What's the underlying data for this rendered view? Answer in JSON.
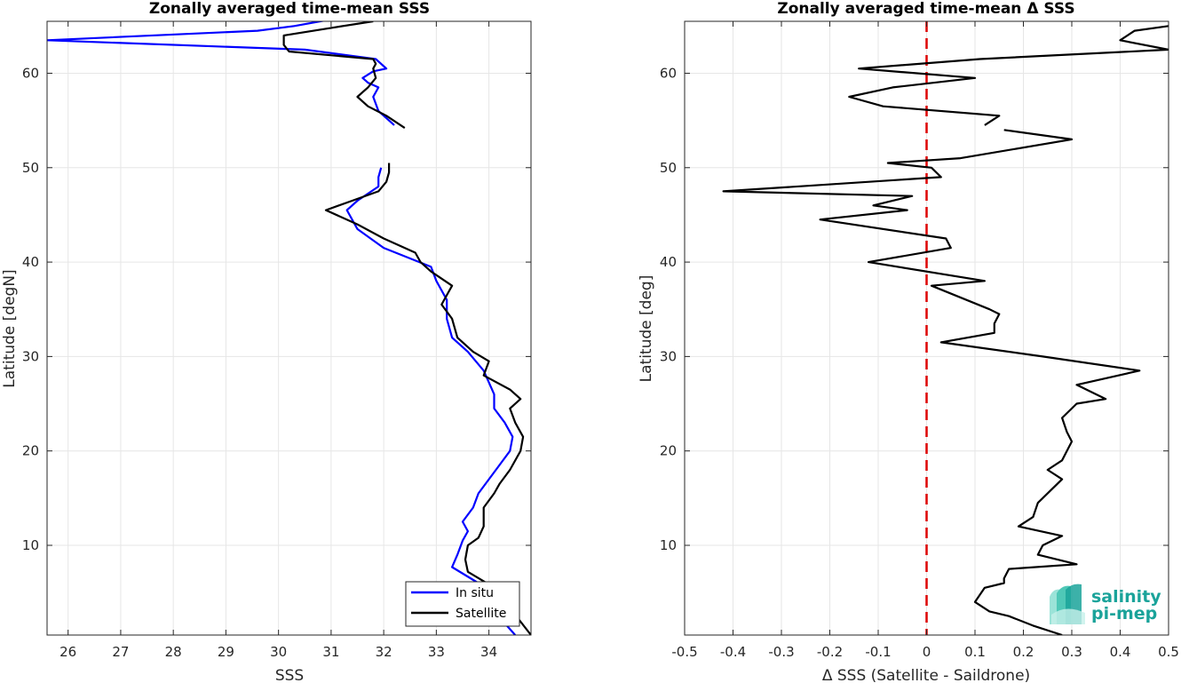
{
  "chart_data": [
    {
      "type": "line",
      "title": "Zonally averaged time-mean SSS",
      "xlabel": "SSS",
      "ylabel": "Latitude [degN]",
      "xlim": [
        25.6,
        34.8
      ],
      "ylim": [
        0.5,
        65.5
      ],
      "xticks": [
        26,
        27,
        28,
        29,
        30,
        31,
        32,
        33,
        34
      ],
      "yticks": [
        10,
        20,
        30,
        40,
        50,
        60
      ],
      "grid": true,
      "legend": "bottom-right",
      "series": [
        {
          "name": "In situ",
          "color": "#0000ff",
          "segments": [
            [
              [
                34.5,
                0.5
              ],
              [
                34.1,
                3.0
              ],
              [
                33.9,
                5.0
              ],
              [
                33.8,
                6.0
              ],
              [
                33.3,
                7.7
              ],
              [
                33.4,
                9.0
              ],
              [
                33.5,
                10.5
              ],
              [
                33.6,
                11.5
              ],
              [
                33.5,
                12.5
              ],
              [
                33.7,
                14.0
              ],
              [
                33.8,
                15.5
              ],
              [
                34.0,
                17.0
              ],
              [
                34.2,
                18.5
              ],
              [
                34.4,
                20.0
              ],
              [
                34.45,
                21.5
              ],
              [
                34.3,
                23.0
              ],
              [
                34.1,
                24.5
              ],
              [
                34.1,
                26.0
              ],
              [
                33.9,
                28.5
              ],
              [
                33.6,
                30.5
              ],
              [
                33.3,
                32.0
              ],
              [
                33.2,
                34.0
              ],
              [
                33.2,
                36.0
              ],
              [
                33.0,
                38.0
              ],
              [
                32.9,
                39.5
              ],
              [
                32.0,
                41.5
              ],
              [
                31.5,
                43.5
              ],
              [
                31.3,
                45.5
              ],
              [
                31.5,
                46.5
              ],
              [
                31.9,
                48.0
              ],
              [
                31.9,
                49.0
              ],
              [
                31.95,
                50.0
              ]
            ],
            [
              [
                32.2,
                54.5
              ],
              [
                31.9,
                56.0
              ],
              [
                31.8,
                57.5
              ],
              [
                31.9,
                58.5
              ],
              [
                31.7,
                59.0
              ],
              [
                31.6,
                59.5
              ],
              [
                31.8,
                60.2
              ],
              [
                32.05,
                60.5
              ],
              [
                31.85,
                61.5
              ],
              [
                30.5,
                62.5
              ],
              [
                25.6,
                63.5
              ],
              [
                29.6,
                64.5
              ],
              [
                30.3,
                65.0
              ],
              [
                30.9,
                65.6
              ]
            ]
          ]
        },
        {
          "name": "Satellite",
          "color": "#000000",
          "segments": [
            [
              [
                34.8,
                0.5
              ],
              [
                34.1,
                5.5
              ],
              [
                33.9,
                6.2
              ],
              [
                33.6,
                7.2
              ],
              [
                33.55,
                8.5
              ],
              [
                33.6,
                10.0
              ],
              [
                33.8,
                10.8
              ],
              [
                33.9,
                12.0
              ],
              [
                33.9,
                14.0
              ],
              [
                34.1,
                15.5
              ],
              [
                34.2,
                16.5
              ],
              [
                34.4,
                18.0
              ],
              [
                34.6,
                20.0
              ],
              [
                34.65,
                21.5
              ],
              [
                34.5,
                23.0
              ],
              [
                34.4,
                24.5
              ],
              [
                34.6,
                25.5
              ],
              [
                34.4,
                26.5
              ],
              [
                33.9,
                28.0
              ],
              [
                34.0,
                29.5
              ],
              [
                33.7,
                30.5
              ],
              [
                33.4,
                32.0
              ],
              [
                33.3,
                34.0
              ],
              [
                33.1,
                35.5
              ],
              [
                33.3,
                37.5
              ],
              [
                32.9,
                39.0
              ],
              [
                32.7,
                40.0
              ],
              [
                32.6,
                41.0
              ],
              [
                32.0,
                42.5
              ],
              [
                31.5,
                44.0
              ],
              [
                30.9,
                45.5
              ],
              [
                31.4,
                46.5
              ],
              [
                31.9,
                47.5
              ],
              [
                32.05,
                48.5
              ],
              [
                32.1,
                49.5
              ],
              [
                32.1,
                50.5
              ]
            ],
            [
              [
                32.4,
                54.2
              ],
              [
                32.05,
                55.5
              ],
              [
                31.7,
                56.5
              ],
              [
                31.5,
                57.5
              ],
              [
                31.7,
                58.5
              ],
              [
                31.85,
                59.5
              ],
              [
                31.8,
                60.5
              ],
              [
                31.85,
                61.0
              ],
              [
                31.8,
                61.5
              ],
              [
                30.2,
                62.3
              ],
              [
                30.1,
                63.0
              ],
              [
                30.1,
                64.0
              ],
              [
                31.0,
                64.8
              ],
              [
                31.8,
                65.5
              ]
            ]
          ]
        }
      ]
    },
    {
      "type": "line",
      "title": "Zonally averaged time-mean Δ SSS",
      "xlabel": "Δ SSS (Satellite - Saildrone)",
      "ylabel": "Latitude [deg]",
      "xlim": [
        -0.5,
        0.5
      ],
      "ylim": [
        0.5,
        65.5
      ],
      "xticks": [
        -0.5,
        -0.4,
        -0.3,
        -0.2,
        -0.1,
        0,
        0.1,
        0.2,
        0.3,
        0.4,
        0.5
      ],
      "xticklabels": [
        "-0.5",
        "-0.4",
        "-0.3",
        "-0.2",
        "-0.1",
        "0",
        "0.1",
        "0.2",
        "0.3",
        "0.4",
        "0.5"
      ],
      "yticks": [
        10,
        20,
        30,
        40,
        50,
        60
      ],
      "grid": true,
      "reference_line": {
        "x": 0,
        "color": "#dd0000",
        "style": "dashed"
      },
      "series": [
        {
          "color": "#000000",
          "segments": [
            [
              [
                0.28,
                0.5
              ],
              [
                0.22,
                1.5
              ],
              [
                0.17,
                2.5
              ],
              [
                0.13,
                3.0
              ],
              [
                0.1,
                4.0
              ],
              [
                0.12,
                5.5
              ],
              [
                0.16,
                6.0
              ],
              [
                0.16,
                6.5
              ],
              [
                0.17,
                7.5
              ],
              [
                0.31,
                8.0
              ],
              [
                0.23,
                9.0
              ],
              [
                0.24,
                10.0
              ],
              [
                0.28,
                11.0
              ],
              [
                0.19,
                12.0
              ],
              [
                0.22,
                13.0
              ],
              [
                0.23,
                14.5
              ],
              [
                0.26,
                16.0
              ],
              [
                0.28,
                17.0
              ],
              [
                0.25,
                18.0
              ],
              [
                0.28,
                19.0
              ],
              [
                0.29,
                20.0
              ],
              [
                0.3,
                21.0
              ],
              [
                0.29,
                22.0
              ],
              [
                0.28,
                23.5
              ],
              [
                0.31,
                25.0
              ],
              [
                0.37,
                25.5
              ],
              [
                0.31,
                27.0
              ],
              [
                0.44,
                28.5
              ],
              [
                0.24,
                30.0
              ],
              [
                0.03,
                31.5
              ],
              [
                0.14,
                32.5
              ],
              [
                0.14,
                33.5
              ],
              [
                0.15,
                34.5
              ],
              [
                0.13,
                35.0
              ],
              [
                0.01,
                37.5
              ],
              [
                0.12,
                38.0
              ],
              [
                -0.12,
                40.0
              ],
              [
                0.05,
                41.5
              ],
              [
                0.04,
                42.5
              ],
              [
                -0.22,
                44.5
              ],
              [
                -0.04,
                45.5
              ],
              [
                -0.11,
                46.0
              ],
              [
                -0.03,
                47.0
              ],
              [
                -0.42,
                47.5
              ],
              [
                0.03,
                49.0
              ],
              [
                0.01,
                50.0
              ],
              [
                -0.08,
                50.5
              ],
              [
                0.07,
                51.0
              ],
              [
                0.3,
                53.0
              ],
              [
                0.16,
                54.0
              ]
            ],
            [
              [
                0.12,
                54.5
              ],
              [
                0.15,
                55.5
              ],
              [
                -0.09,
                56.5
              ],
              [
                -0.16,
                57.5
              ],
              [
                -0.07,
                58.5
              ],
              [
                0.1,
                59.5
              ],
              [
                -0.14,
                60.5
              ],
              [
                0.11,
                61.5
              ],
              [
                0.5,
                62.5
              ],
              [
                0.4,
                63.5
              ],
              [
                0.43,
                64.5
              ],
              [
                0.5,
                65.0
              ]
            ]
          ]
        }
      ]
    }
  ],
  "brand": {
    "line1": "salinity",
    "line2": "pi-mep"
  }
}
